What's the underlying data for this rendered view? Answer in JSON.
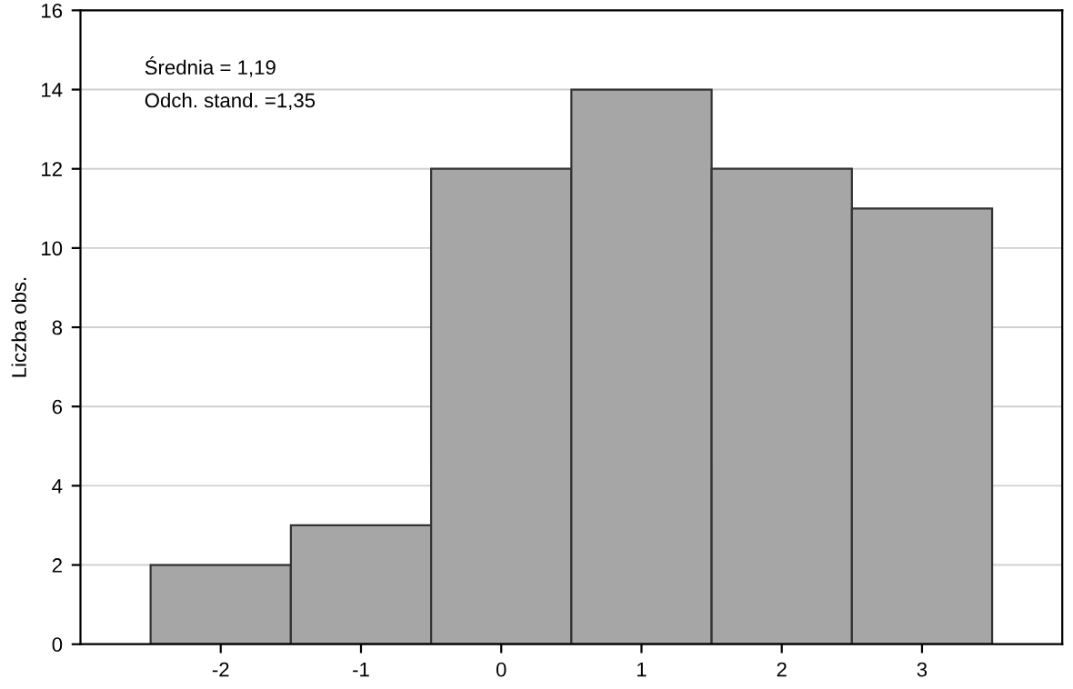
{
  "chart_data": {
    "type": "histogram",
    "ylabel": "Liczba obs.",
    "bins": [
      -2.5,
      -1.5,
      -0.5,
      0.5,
      1.5,
      2.5,
      3.5
    ],
    "values": [
      2,
      3,
      12,
      14,
      12,
      11
    ],
    "color": "#a6a6a6",
    "xlim": [
      -3,
      4
    ],
    "xticks": [
      -2,
      -1,
      0,
      1,
      2,
      3
    ],
    "ylim": [
      0,
      16
    ],
    "yticks": [
      0,
      2,
      4,
      6,
      8,
      10,
      12,
      14,
      16
    ],
    "grid": "y",
    "annotations": [
      "Średnia = 1,19",
      "Odch. stand. =1,35"
    ]
  }
}
